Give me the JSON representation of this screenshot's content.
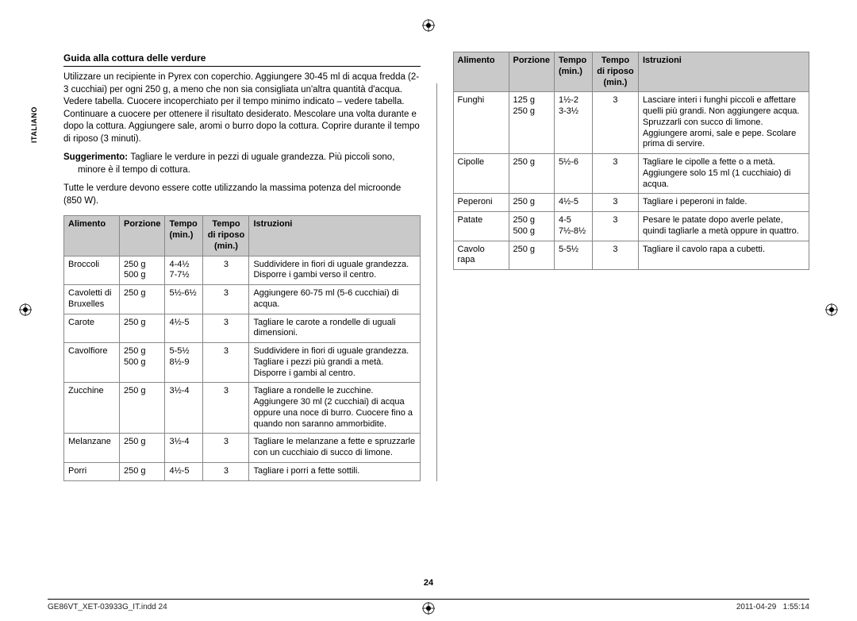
{
  "side_tab": "ITALIANO",
  "heading": "Guida alla cottura delle verdure",
  "intro": "Utilizzare un recipiente in Pyrex con coperchio. Aggiungere 30-45 ml di acqua fredda (2-3 cucchiai) per ogni 250 g, a meno che non sia consigliata un'altra quantità d'acqua. Vedere tabella. Cuocere incoperchiato per il tempo minimo indicato – vedere tabella. Continuare a cuocere per ottenere il risultato desiderato. Mescolare una volta durante e dopo la cottura. Aggiungere sale, aromi o burro dopo la cottura. Coprire durante il tempo di riposo (3 minuti).",
  "hint_label": "Suggerimento:",
  "hint_text": "Tagliare le verdure in pezzi di uguale grandezza. Più piccoli sono, minore è il tempo di cottura.",
  "note": "Tutte le verdure devono essere cotte utilizzando la massima potenza del microonde (850 W).",
  "headers": {
    "c0": "Alimento",
    "c1": "Porzione",
    "c2": "Tempo (min.)",
    "c3": "Tempo di riposo (min.)",
    "c4": "Istruzioni"
  },
  "rows_left": [
    {
      "a": "Broccoli",
      "p": "250 g\n500 g",
      "t": "4-4½\n7-7½",
      "r": "3",
      "i": "Suddividere in fiori di uguale grandezza. Disporre i gambi verso il centro."
    },
    {
      "a": "Cavoletti di Bruxelles",
      "p": "250 g",
      "t": "5½-6½",
      "r": "3",
      "i": "Aggiungere 60-75 ml (5-6 cucchiai) di acqua."
    },
    {
      "a": "Carote",
      "p": "250 g",
      "t": "4½-5",
      "r": "3",
      "i": "Tagliare le carote a rondelle di uguali dimensioni."
    },
    {
      "a": "Cavolfiore",
      "p": "250 g\n500 g",
      "t": "5-5½\n8½-9",
      "r": "3",
      "i": "Suddividere in fiori di uguale grandezza. Tagliare i pezzi più grandi a metà. Disporre i gambi al centro."
    },
    {
      "a": "Zucchine",
      "p": "250 g",
      "t": "3½-4",
      "r": "3",
      "i": "Tagliare a rondelle le zucchine. Aggiungere 30 ml (2 cucchiai) di acqua oppure una noce di burro. Cuocere fino a quando non saranno ammorbidite."
    },
    {
      "a": "Melanzane",
      "p": "250 g",
      "t": "3½-4",
      "r": "3",
      "i": "Tagliare le melanzane a fette e spruzzarle con un cucchiaio di succo di limone."
    },
    {
      "a": "Porri",
      "p": "250 g",
      "t": "4½-5",
      "r": "3",
      "i": "Tagliare i porri a fette sottili."
    }
  ],
  "rows_right": [
    {
      "a": "Funghi",
      "p": "125 g\n250 g",
      "t": "1½-2\n3-3½",
      "r": "3",
      "i": "Lasciare interi i funghi piccoli e affettare quelli più grandi. Non aggiungere acqua. Spruzzarli con succo di limone. Aggiungere aromi, sale e pepe. Scolare prima di servire."
    },
    {
      "a": "Cipolle",
      "p": "250 g",
      "t": "5½-6",
      "r": "3",
      "i": "Tagliare le cipolle a fette o a metà. Aggiungere solo 15 ml (1 cucchiaio) di acqua."
    },
    {
      "a": "Peperoni",
      "p": "250 g",
      "t": "4½-5",
      "r": "3",
      "i": "Tagliare i peperoni in falde."
    },
    {
      "a": "Patate",
      "p": "250 g\n500 g",
      "t": "4-5\n7½-8½",
      "r": "3",
      "i": "Pesare le patate dopo averle pelate, quindi tagliarle a metà oppure in quattro."
    },
    {
      "a": "Cavolo rapa",
      "p": "250 g",
      "t": "5-5½",
      "r": "3",
      "i": "Tagliare il cavolo rapa a cubetti."
    }
  ],
  "page_number": "24",
  "footer_left": "GE86VT_XET-03933G_IT.indd   24",
  "footer_date": "2011-04-29",
  "footer_time": "1:55:14"
}
